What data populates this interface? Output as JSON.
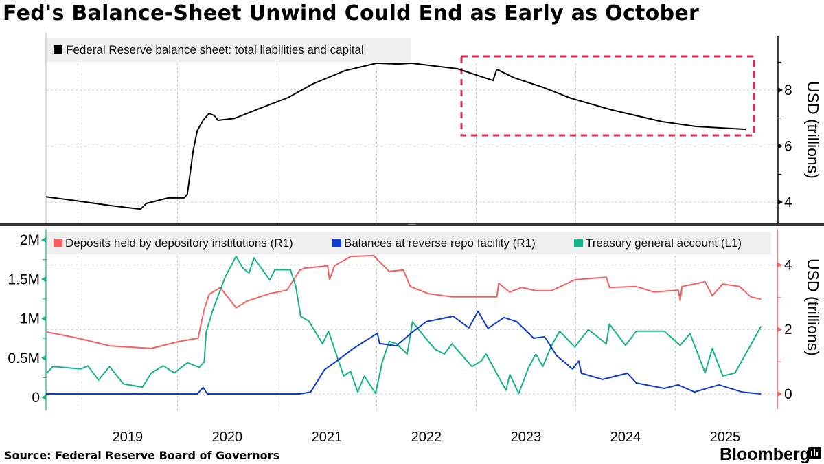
{
  "title": "Fed's Balance-Sheet Unwind Could End as Early as October",
  "source": "Source: Federal Reserve Board of Governors",
  "brand": "Bloomberg",
  "colors": {
    "balance_sheet": "#000000",
    "deposits": "#f4615f",
    "reverse_repo": "#0f3ccc",
    "tga": "#14b38a",
    "highlight_box": "#e8254a",
    "right_axis_bottom": "#f4615f",
    "left_axis_bottom": "#14b38a"
  },
  "x_tick_labels": [
    "2019",
    "2020",
    "2021",
    "2022",
    "2023",
    "2024",
    "2025"
  ],
  "chart_data": [
    {
      "type": "line",
      "title": "",
      "ylabel": "USD (trillions)",
      "y_axis_side": "right",
      "ylim": [
        3.3,
        9.9
      ],
      "y_ticks": [
        4,
        6,
        8
      ],
      "y_tick_labels": [
        "4",
        "6",
        "8"
      ],
      "grid": true,
      "legend_position": "top-left",
      "annotation": "dashed red box highlighting 2022-2025 decline",
      "series": [
        {
          "name": "Federal Reserve balance sheet: total liabilities and capital",
          "points": [
            [
              "2018-09-06",
              4.19
            ],
            [
              "2018-12-24",
              4.05
            ],
            [
              "2019-04-26",
              3.88
            ],
            [
              "2019-08-18",
              3.75
            ],
            [
              "2019-09-09",
              3.95
            ],
            [
              "2019-11-28",
              4.15
            ],
            [
              "2020-01-26",
              4.15
            ],
            [
              "2020-02-07",
              4.29
            ],
            [
              "2020-02-28",
              5.82
            ],
            [
              "2020-03-13",
              6.55
            ],
            [
              "2020-04-04",
              6.92
            ],
            [
              "2020-04-26",
              7.17
            ],
            [
              "2020-05-14",
              7.09
            ],
            [
              "2020-05-28",
              6.92
            ],
            [
              "2020-07-28",
              6.99
            ],
            [
              "2020-11-03",
              7.36
            ],
            [
              "2021-02-11",
              7.73
            ],
            [
              "2021-05-11",
              8.22
            ],
            [
              "2021-09-06",
              8.69
            ],
            [
              "2022-01-01",
              8.96
            ],
            [
              "2022-03-20",
              8.93
            ],
            [
              "2022-05-07",
              8.96
            ],
            [
              "2022-10-23",
              8.76
            ],
            [
              "2023-03-02",
              8.34
            ],
            [
              "2023-03-16",
              8.74
            ],
            [
              "2023-05-18",
              8.44
            ],
            [
              "2023-09-02",
              8.1
            ],
            [
              "2023-12-13",
              7.71
            ],
            [
              "2024-05-11",
              7.29
            ],
            [
              "2024-11-14",
              6.87
            ],
            [
              "2025-03-16",
              6.7
            ],
            [
              "2025-09-16",
              6.6
            ]
          ]
        }
      ]
    },
    {
      "type": "line",
      "title": "",
      "ylabel_right": "USD (trillions)",
      "ylim_right": [
        -0.5,
        5.0
      ],
      "y_ticks_right": [
        0,
        2,
        4
      ],
      "y_tick_labels_right": [
        "0",
        "2",
        "4"
      ],
      "ylim_left": [
        -0.2,
        2.1
      ],
      "y_ticks_left": [
        0,
        0.5,
        1,
        1.5,
        2
      ],
      "y_tick_labels_left": [
        "0",
        "0.5M",
        "1M",
        "1.5M",
        "2M"
      ],
      "grid": true,
      "legend_position": "top",
      "series": [
        {
          "name": "Deposits held by depository institutions (R1)",
          "axis": "right",
          "points": [
            [
              "2018-09-09",
              1.92
            ],
            [
              "2019-01-01",
              1.73
            ],
            [
              "2019-04-26",
              1.49
            ],
            [
              "2019-09-27",
              1.41
            ],
            [
              "2020-01-04",
              1.62
            ],
            [
              "2020-03-16",
              1.73
            ],
            [
              "2020-04-08",
              2.62
            ],
            [
              "2020-04-26",
              3.09
            ],
            [
              "2020-06-06",
              3.3
            ],
            [
              "2020-08-03",
              2.67
            ],
            [
              "2020-09-13",
              2.88
            ],
            [
              "2020-12-05",
              3.11
            ],
            [
              "2021-02-07",
              3.22
            ],
            [
              "2021-03-24",
              3.84
            ],
            [
              "2021-04-12",
              3.9
            ],
            [
              "2021-07-04",
              3.97
            ],
            [
              "2021-07-11",
              3.54
            ],
            [
              "2021-07-29",
              3.97
            ],
            [
              "2021-09-27",
              4.26
            ],
            [
              "2021-12-20",
              4.29
            ],
            [
              "2022-02-17",
              3.8
            ],
            [
              "2022-04-08",
              3.84
            ],
            [
              "2022-05-03",
              3.33
            ],
            [
              "2022-07-08",
              3.11
            ],
            [
              "2022-10-04",
              3.01
            ],
            [
              "2023-01-12",
              3.01
            ],
            [
              "2023-03-16",
              3.01
            ],
            [
              "2023-03-23",
              3.43
            ],
            [
              "2023-05-02",
              3.16
            ],
            [
              "2023-06-16",
              3.3
            ],
            [
              "2023-08-07",
              3.2
            ],
            [
              "2023-10-04",
              3.2
            ],
            [
              "2023-12-28",
              3.54
            ],
            [
              "2024-04-22",
              3.62
            ],
            [
              "2024-05-03",
              3.3
            ],
            [
              "2024-08-10",
              3.33
            ],
            [
              "2024-10-15",
              3.16
            ],
            [
              "2025-01-12",
              3.22
            ],
            [
              "2025-01-19",
              2.9
            ],
            [
              "2025-01-26",
              3.33
            ],
            [
              "2025-04-19",
              3.48
            ],
            [
              "2025-05-15",
              3.05
            ],
            [
              "2025-06-23",
              3.41
            ],
            [
              "2025-08-24",
              3.33
            ],
            [
              "2025-10-04",
              3.01
            ],
            [
              "2025-11-11",
              2.94
            ]
          ]
        },
        {
          "name": "Balances at reverse repo facility (R1)",
          "axis": "right",
          "points": [
            [
              "2018-09-06",
              0.0
            ],
            [
              "2020-03-13",
              0.0
            ],
            [
              "2020-04-04",
              0.2
            ],
            [
              "2020-04-19",
              0.0
            ],
            [
              "2021-03-24",
              0.0
            ],
            [
              "2021-05-03",
              0.06
            ],
            [
              "2021-06-23",
              0.75
            ],
            [
              "2021-08-07",
              1.02
            ],
            [
              "2021-10-04",
              1.39
            ],
            [
              "2022-01-04",
              1.88
            ],
            [
              "2022-01-12",
              1.56
            ],
            [
              "2022-03-13",
              1.49
            ],
            [
              "2022-05-11",
              1.92
            ],
            [
              "2022-07-01",
              2.24
            ],
            [
              "2022-10-08",
              2.41
            ],
            [
              "2022-12-05",
              2.05
            ],
            [
              "2023-01-08",
              2.56
            ],
            [
              "2023-02-14",
              2.03
            ],
            [
              "2023-04-12",
              2.37
            ],
            [
              "2023-05-28",
              2.24
            ],
            [
              "2023-07-29",
              1.73
            ],
            [
              "2023-09-09",
              1.77
            ],
            [
              "2023-10-22",
              1.19
            ],
            [
              "2023-12-20",
              0.77
            ],
            [
              "2024-01-12",
              1.02
            ],
            [
              "2024-01-22",
              0.64
            ],
            [
              "2024-04-08",
              0.45
            ],
            [
              "2024-07-08",
              0.64
            ],
            [
              "2024-08-10",
              0.34
            ],
            [
              "2024-11-21",
              0.17
            ],
            [
              "2025-01-12",
              0.28
            ],
            [
              "2025-03-10",
              0.06
            ],
            [
              "2025-06-09",
              0.28
            ],
            [
              "2025-09-02",
              0.06
            ],
            [
              "2025-11-11",
              0.0
            ]
          ]
        },
        {
          "name": "Treasury general account  (L1)",
          "axis": "left",
          "points": [
            [
              "2018-09-09",
              0.31
            ],
            [
              "2018-10-01",
              0.39
            ],
            [
              "2019-01-12",
              0.36
            ],
            [
              "2019-02-07",
              0.4
            ],
            [
              "2019-03-16",
              0.22
            ],
            [
              "2019-04-26",
              0.39
            ],
            [
              "2019-06-16",
              0.17
            ],
            [
              "2019-08-07",
              0.14
            ],
            [
              "2019-08-25",
              0.13
            ],
            [
              "2019-09-27",
              0.31
            ],
            [
              "2019-11-10",
              0.4
            ],
            [
              "2019-12-20",
              0.31
            ],
            [
              "2020-02-07",
              0.44
            ],
            [
              "2020-03-20",
              0.38
            ],
            [
              "2020-04-08",
              0.45
            ],
            [
              "2020-04-15",
              0.83
            ],
            [
              "2020-05-10",
              1.12
            ],
            [
              "2020-06-24",
              1.53
            ],
            [
              "2020-08-03",
              1.79
            ],
            [
              "2020-08-28",
              1.64
            ],
            [
              "2020-09-20",
              1.58
            ],
            [
              "2020-10-08",
              1.77
            ],
            [
              "2020-12-05",
              1.49
            ],
            [
              "2020-12-23",
              1.62
            ],
            [
              "2021-02-20",
              1.62
            ],
            [
              "2021-03-09",
              1.41
            ],
            [
              "2021-03-27",
              1.03
            ],
            [
              "2021-04-26",
              0.97
            ],
            [
              "2021-06-16",
              0.68
            ],
            [
              "2021-07-07",
              0.84
            ],
            [
              "2021-09-02",
              0.27
            ],
            [
              "2021-09-27",
              0.33
            ],
            [
              "2021-10-23",
              0.07
            ],
            [
              "2021-11-17",
              0.27
            ],
            [
              "2021-12-28",
              0.05
            ],
            [
              "2022-01-22",
              0.45
            ],
            [
              "2022-02-17",
              0.71
            ],
            [
              "2022-03-13",
              0.68
            ],
            [
              "2022-04-22",
              0.55
            ],
            [
              "2022-05-11",
              0.96
            ],
            [
              "2022-06-24",
              0.77
            ],
            [
              "2022-08-03",
              0.61
            ],
            [
              "2022-09-06",
              0.55
            ],
            [
              "2022-10-04",
              0.68
            ],
            [
              "2022-12-16",
              0.39
            ],
            [
              "2023-01-19",
              0.46
            ],
            [
              "2023-02-07",
              0.55
            ],
            [
              "2023-04-19",
              0.09
            ],
            [
              "2023-05-03",
              0.29
            ],
            [
              "2023-06-05",
              0.05
            ],
            [
              "2023-07-12",
              0.39
            ],
            [
              "2023-08-07",
              0.55
            ],
            [
              "2023-09-02",
              0.39
            ],
            [
              "2023-10-04",
              0.66
            ],
            [
              "2023-11-03",
              0.84
            ],
            [
              "2023-12-28",
              0.64
            ],
            [
              "2024-02-17",
              0.86
            ],
            [
              "2024-04-22",
              0.68
            ],
            [
              "2024-05-03",
              0.93
            ],
            [
              "2024-07-01",
              0.66
            ],
            [
              "2024-08-10",
              0.84
            ],
            [
              "2024-11-21",
              0.84
            ],
            [
              "2025-01-19",
              0.66
            ],
            [
              "2025-02-25",
              0.81
            ],
            [
              "2025-04-19",
              0.31
            ],
            [
              "2025-05-15",
              0.62
            ],
            [
              "2025-06-23",
              0.27
            ],
            [
              "2025-08-07",
              0.31
            ],
            [
              "2025-09-27",
              0.62
            ],
            [
              "2025-11-11",
              0.9
            ]
          ]
        }
      ]
    }
  ]
}
